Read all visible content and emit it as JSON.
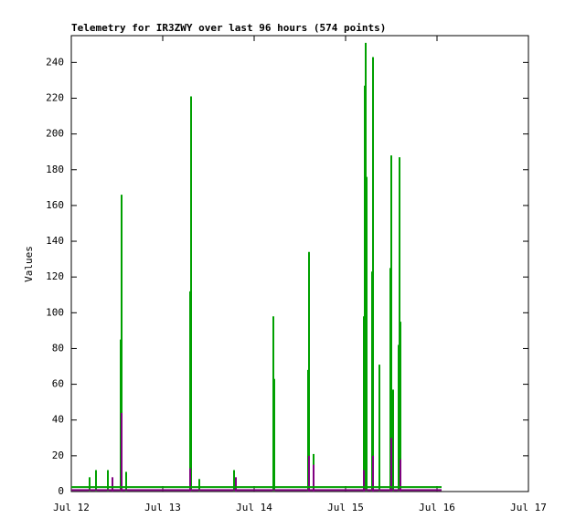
{
  "chart_data": {
    "type": "impulse",
    "title": "Telemetry for IR3ZWY over last 96 hours (574 points)",
    "y_label": "Values",
    "xlim": [
      12,
      17
    ],
    "xticks": [
      {
        "value": 12,
        "label": "Jul 12"
      },
      {
        "value": 13,
        "label": "Jul 13"
      },
      {
        "value": 14,
        "label": "Jul 14"
      },
      {
        "value": 15,
        "label": "Jul 15"
      },
      {
        "value": 16,
        "label": "Jul 16"
      },
      {
        "value": 17,
        "label": "Jul 17"
      }
    ],
    "ylim": [
      0,
      255
    ],
    "yticks": [
      0,
      20,
      40,
      60,
      80,
      100,
      120,
      140,
      160,
      180,
      200,
      220,
      240
    ],
    "series": [
      {
        "type": "impulse",
        "color": "#00a000",
        "x": [
          12.2,
          12.27,
          12.4,
          12.54,
          12.55,
          12.6,
          13.3,
          13.31,
          13.4,
          13.78,
          14.21,
          14.22,
          14.59,
          14.6,
          14.65,
          15.2,
          15.21,
          15.22,
          15.23,
          15.29,
          15.3,
          15.37,
          15.49,
          15.5,
          15.52,
          15.58,
          15.59,
          15.6
        ],
        "values": [
          8,
          12,
          12,
          85,
          166,
          11,
          112,
          221,
          7,
          12,
          98,
          63,
          68,
          134,
          21,
          98,
          227,
          251,
          176,
          123,
          243,
          71,
          125,
          188,
          57,
          82,
          187,
          95
        ]
      },
      {
        "type": "impulse",
        "color": "#800080",
        "x": [
          12.45,
          12.55,
          13.3,
          13.8,
          14.6,
          14.65,
          15.2,
          15.3,
          15.5,
          15.6
        ],
        "values": [
          8,
          44,
          13,
          8,
          20,
          15,
          12,
          20,
          30,
          18
        ]
      },
      {
        "type": "line",
        "color": "#00a000",
        "x": [
          12.0,
          16.05
        ],
        "values": [
          2.5,
          2.5
        ]
      },
      {
        "type": "line",
        "color": "#800080",
        "x": [
          12.0,
          16.05
        ],
        "values": [
          0.8,
          0.8
        ]
      }
    ]
  }
}
